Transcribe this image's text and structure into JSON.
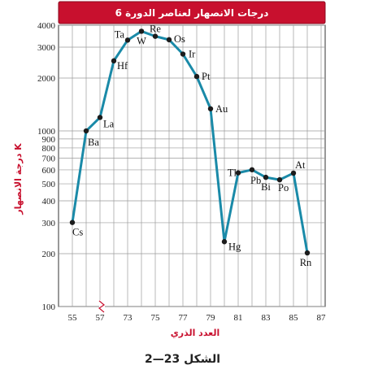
{
  "chart_data": {
    "type": "line",
    "title": "درجات الانصهار لعناصر الدورة 6",
    "xlabel": "العدد الذري",
    "ylabel": "درجة الانصهار K",
    "caption": "الشكل 23—2",
    "y_scale": "log",
    "ylim": [
      100,
      4000
    ],
    "xlim": [
      55,
      87
    ],
    "axis_break": "x at 57",
    "grid": true,
    "yticks": [
      100,
      200,
      300,
      400,
      500,
      600,
      700,
      800,
      900,
      1000,
      2000,
      3000,
      4000
    ],
    "xticks": [
      55,
      57,
      73,
      75,
      77,
      79,
      81,
      83,
      85,
      87
    ],
    "points": [
      {
        "label": "Cs",
        "x": 55,
        "y": 301
      },
      {
        "label": "Ba",
        "x": 56,
        "y": 1000
      },
      {
        "label": "La",
        "x": 57,
        "y": 1193
      },
      {
        "label": "Hf",
        "x": 72,
        "y": 2506
      },
      {
        "label": "Ta",
        "x": 73,
        "y": 3290
      },
      {
        "label": "W",
        "x": 74,
        "y": 3695
      },
      {
        "label": "Re",
        "x": 75,
        "y": 3459
      },
      {
        "label": "Os",
        "x": 76,
        "y": 3306
      },
      {
        "label": "Ir",
        "x": 77,
        "y": 2739
      },
      {
        "label": "Pt",
        "x": 78,
        "y": 2041
      },
      {
        "label": "Au",
        "x": 79,
        "y": 1337
      },
      {
        "label": "Hg",
        "x": 80,
        "y": 234
      },
      {
        "label": "Tl",
        "x": 81,
        "y": 577
      },
      {
        "label": "Pb",
        "x": 82,
        "y": 601
      },
      {
        "label": "Bi",
        "x": 83,
        "y": 544
      },
      {
        "label": "Po",
        "x": 84,
        "y": 527
      },
      {
        "label": "At",
        "x": 85,
        "y": 575
      },
      {
        "label": "Rn",
        "x": 86,
        "y": 202
      }
    ]
  },
  "colors": {
    "header": "#c8102e",
    "line": "#1a8aa8",
    "marker": "#1c1c1c",
    "grid": "#9a9a9a",
    "axis_label": "#c8102e"
  }
}
